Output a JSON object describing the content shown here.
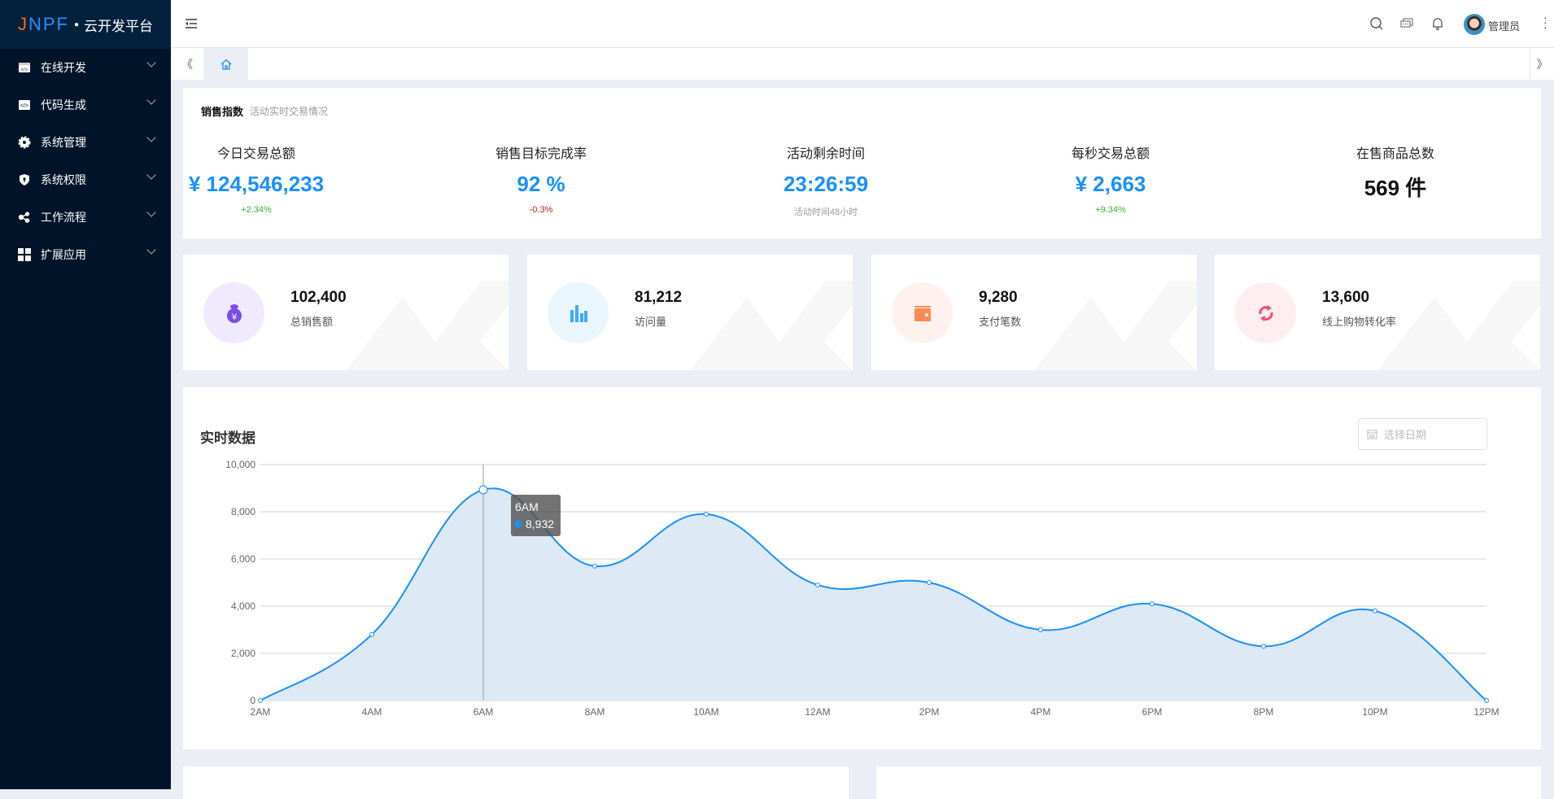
{
  "app": {
    "logo": "JNPF",
    "title": "云开发平台"
  },
  "sidebar": {
    "items": [
      {
        "label": "在线开发",
        "icon": "code-window-icon"
      },
      {
        "label": "代码生成",
        "icon": "code-icon"
      },
      {
        "label": "系统管理",
        "icon": "gear-icon"
      },
      {
        "label": "系统权限",
        "icon": "shield-icon"
      },
      {
        "label": "工作流程",
        "icon": "share-nodes-icon"
      },
      {
        "label": "扩展应用",
        "icon": "grid-icon"
      }
    ]
  },
  "header": {
    "user": "管理员"
  },
  "sales": {
    "title": "销售指数",
    "subtitle": "活动实时交易情况",
    "kpis": [
      {
        "label": "今日交易总额",
        "value": "¥ 124,546,233",
        "sub": "+2.34%",
        "sub_color": "#2eb82e",
        "value_color": "#1890ff"
      },
      {
        "label": "销售目标完成率",
        "value": "92 %",
        "sub": "-0.3%",
        "sub_color": "#c0201a",
        "value_color": "#1890ff"
      },
      {
        "label": "活动剩余时间",
        "value": "23:26:59",
        "sub": "活动时间48小时",
        "sub_color": "#999999",
        "value_color": "#1890ff"
      },
      {
        "label": "每秒交易总额",
        "value": "¥ 2,663",
        "sub": "+9.34%",
        "sub_color": "#2eb82e",
        "value_color": "#1890ff"
      },
      {
        "label": "在售商品总数",
        "value": "569 件",
        "sub": "",
        "sub_color": "#999999",
        "value_color": "#111111"
      }
    ]
  },
  "stats": [
    {
      "value": "102,400",
      "label": "总销售额",
      "icon": "money-bag-icon",
      "color": "#7a4ee6",
      "bg": "#f1eafc"
    },
    {
      "value": "81,212",
      "label": "访问量",
      "icon": "bar-chart-icon",
      "color": "#40a9ff",
      "bg": "#eaf6fe"
    },
    {
      "value": "9,280",
      "label": "支付笔数",
      "icon": "wallet-icon",
      "color": "#ff8a50",
      "bg": "#fff2ee"
    },
    {
      "value": "13,600",
      "label": "线上购物转化率",
      "icon": "refresh-icon",
      "color": "#f5467a",
      "bg": "#feedf1"
    }
  ],
  "realtime": {
    "title": "实时数据",
    "date_placeholder": "选择日期"
  },
  "chart_data": {
    "type": "area",
    "categories": [
      "2AM",
      "4AM",
      "6AM",
      "8AM",
      "10AM",
      "12AM",
      "2PM",
      "4PM",
      "6PM",
      "8PM",
      "10PM",
      "12PM"
    ],
    "values": [
      0,
      2800,
      8932,
      5700,
      7900,
      4900,
      5000,
      3000,
      4100,
      2300,
      3800,
      0
    ],
    "ylim": [
      0,
      10000
    ],
    "yticks": [
      "0",
      "2,000",
      "4,000",
      "6,000",
      "8,000",
      "10,000"
    ],
    "grid": true,
    "smooth": true,
    "line_color": "#1890ff",
    "area_color": "#dde9f5",
    "tooltip": {
      "category": "6AM",
      "value": "8,932"
    }
  }
}
